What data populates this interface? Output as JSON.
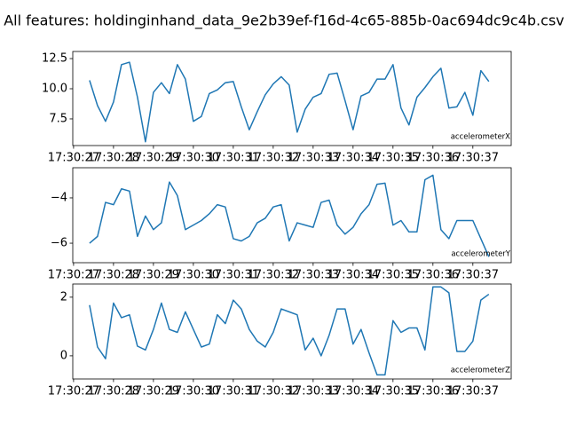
{
  "title": "All features: holdinginhand_data_9e2b39ef-f16d-4c65-885b-0ac694dc9c4b.csv",
  "chart_data": [
    {
      "type": "line",
      "x": [
        "17:30:27.4",
        "17:30:27.6",
        "17:30:27.8",
        "17:30:28.0",
        "17:30:28.2",
        "17:30:28.4",
        "17:30:28.6",
        "17:30:28.8",
        "17:30:29.0",
        "17:30:29.2",
        "17:30:29.4",
        "17:30:29.6",
        "17:30:29.8",
        "17:30:30.0",
        "17:30:30.2",
        "17:30:30.4",
        "17:30:30.6",
        "17:30:30.8",
        "17:30:31.0",
        "17:30:31.2",
        "17:30:31.4",
        "17:30:31.6",
        "17:30:31.8",
        "17:30:32.0",
        "17:30:32.2",
        "17:30:32.4",
        "17:30:32.6",
        "17:30:32.8",
        "17:30:33.0",
        "17:30:33.2",
        "17:30:33.4",
        "17:30:33.6",
        "17:30:33.8",
        "17:30:34.0",
        "17:30:34.2",
        "17:30:34.4",
        "17:30:34.6",
        "17:30:34.8",
        "17:30:35.0",
        "17:30:35.2",
        "17:30:35.4",
        "17:30:35.6",
        "17:30:35.8",
        "17:30:36.0",
        "17:30:36.2",
        "17:30:36.4",
        "17:30:36.6",
        "17:30:36.8",
        "17:30:37.0",
        "17:30:37.2",
        "17:30:37.4"
      ],
      "series": [
        {
          "name": "accelerometerX",
          "color": "#1f77b4",
          "values": [
            10.7,
            8.6,
            7.3,
            8.9,
            12.0,
            12.2,
            9.3,
            5.6,
            9.7,
            10.5,
            9.6,
            12.0,
            10.8,
            7.3,
            7.7,
            9.6,
            9.9,
            10.5,
            10.6,
            8.5,
            6.6,
            8.1,
            9.5,
            10.4,
            11.0,
            10.3,
            6.4,
            8.3,
            9.3,
            9.6,
            11.2,
            11.3,
            9.0,
            6.6,
            9.4,
            9.7,
            10.8,
            10.8,
            12.0,
            8.4,
            7.0,
            9.3,
            10.1,
            11.0,
            11.7,
            8.4,
            8.5,
            9.7,
            7.8,
            11.5,
            10.6
          ]
        }
      ],
      "xlim": [
        "17:30:26.98",
        "17:30:37.96"
      ],
      "xticks": [
        "17:30:27",
        "17:30:28",
        "17:30:29",
        "17:30:30",
        "17:30:31",
        "17:30:32",
        "17:30:33",
        "17:30:34",
        "17:30:35",
        "17:30:36",
        "17:30:37"
      ],
      "ylim": [
        5.29,
        13.09
      ],
      "yticks": [
        7.5,
        {
          "value": 10,
          "label": "10.0"
        },
        12.5
      ],
      "legend": "lower right"
    },
    {
      "type": "line",
      "x": [
        "17:30:27.4",
        "17:30:27.6",
        "17:30:27.8",
        "17:30:28.0",
        "17:30:28.2",
        "17:30:28.4",
        "17:30:28.6",
        "17:30:28.8",
        "17:30:29.0",
        "17:30:29.2",
        "17:30:29.4",
        "17:30:29.6",
        "17:30:29.8",
        "17:30:30.0",
        "17:30:30.2",
        "17:30:30.4",
        "17:30:30.6",
        "17:30:30.8",
        "17:30:31.0",
        "17:30:31.2",
        "17:30:31.4",
        "17:30:31.6",
        "17:30:31.8",
        "17:30:32.0",
        "17:30:32.2",
        "17:30:32.4",
        "17:30:32.6",
        "17:30:32.8",
        "17:30:33.0",
        "17:30:33.2",
        "17:30:33.4",
        "17:30:33.6",
        "17:30:33.8",
        "17:30:34.0",
        "17:30:34.2",
        "17:30:34.4",
        "17:30:34.6",
        "17:30:34.8",
        "17:30:35.0",
        "17:30:35.2",
        "17:30:35.4",
        "17:30:35.6",
        "17:30:35.8",
        "17:30:36.0",
        "17:30:36.2",
        "17:30:36.4",
        "17:30:36.6",
        "17:30:36.8",
        "17:30:37.0",
        "17:30:37.2",
        "17:30:37.4"
      ],
      "series": [
        {
          "name": "accelerometerY",
          "color": "#1f77b4",
          "values": [
            -6.0,
            -5.7,
            -4.2,
            -4.3,
            -3.6,
            -3.7,
            -5.7,
            -4.8,
            -5.4,
            -5.1,
            -3.3,
            -3.9,
            -5.4,
            -5.2,
            -5.0,
            -4.7,
            -4.3,
            -4.4,
            -5.8,
            -5.9,
            -5.7,
            -5.1,
            -4.9,
            -4.4,
            -4.3,
            -5.9,
            -5.1,
            -5.2,
            -5.3,
            -4.2,
            -4.1,
            -5.2,
            -5.6,
            -5.3,
            -4.7,
            -4.3,
            -3.4,
            -3.35,
            -5.2,
            -5.0,
            -5.5,
            -5.5,
            -3.2,
            -3.0,
            -5.4,
            -5.8,
            -5.0,
            -5.0,
            -5.0,
            -5.8,
            -6.6
          ]
        }
      ],
      "xlim": [
        "17:30:26.98",
        "17:30:37.96"
      ],
      "xticks": [
        "17:30:27",
        "17:30:28",
        "17:30:29",
        "17:30:30",
        "17:30:31",
        "17:30:32",
        "17:30:33",
        "17:30:34",
        "17:30:35",
        "17:30:36",
        "17:30:37"
      ],
      "ylim": [
        -6.86,
        -2.67
      ],
      "yticks": [
        {
          "value": -6,
          "label": "−6"
        },
        {
          "value": -4,
          "label": "−4"
        }
      ],
      "legend": "lower right"
    },
    {
      "type": "line",
      "x": [
        "17:30:27.4",
        "17:30:27.6",
        "17:30:27.8",
        "17:30:28.0",
        "17:30:28.2",
        "17:30:28.4",
        "17:30:28.6",
        "17:30:28.8",
        "17:30:29.0",
        "17:30:29.2",
        "17:30:29.4",
        "17:30:29.6",
        "17:30:29.8",
        "17:30:30.0",
        "17:30:30.2",
        "17:30:30.4",
        "17:30:30.6",
        "17:30:30.8",
        "17:30:31.0",
        "17:30:31.2",
        "17:30:31.4",
        "17:30:31.6",
        "17:30:31.8",
        "17:30:32.0",
        "17:30:32.2",
        "17:30:32.4",
        "17:30:32.6",
        "17:30:32.8",
        "17:30:33.0",
        "17:30:33.2",
        "17:30:33.4",
        "17:30:33.6",
        "17:30:33.8",
        "17:30:34.0",
        "17:30:34.2",
        "17:30:34.4",
        "17:30:34.6",
        "17:30:34.8",
        "17:30:35.0",
        "17:30:35.2",
        "17:30:35.4",
        "17:30:35.6",
        "17:30:35.8",
        "17:30:36.0",
        "17:30:36.2",
        "17:30:36.4",
        "17:30:36.6",
        "17:30:36.8",
        "17:30:37.0",
        "17:30:37.2",
        "17:30:37.4"
      ],
      "series": [
        {
          "name": "accelerometerZ",
          "color": "#1f77b4",
          "values": [
            1.73,
            0.3,
            -0.1,
            1.8,
            1.3,
            1.4,
            0.33,
            0.2,
            0.9,
            1.8,
            0.9,
            0.8,
            1.5,
            0.9,
            0.3,
            0.4,
            1.4,
            1.1,
            1.9,
            1.6,
            0.9,
            0.5,
            0.3,
            0.8,
            1.6,
            1.5,
            1.4,
            0.2,
            0.6,
            0.0,
            0.7,
            1.6,
            1.6,
            0.4,
            0.9,
            0.1,
            -0.65,
            -0.65,
            1.2,
            0.8,
            0.95,
            0.95,
            0.2,
            2.35,
            2.35,
            2.15,
            0.15,
            0.15,
            0.5,
            1.9,
            2.1
          ]
        }
      ],
      "xlim": [
        "17:30:26.98",
        "17:30:37.96"
      ],
      "xticks": [
        "17:30:27",
        "17:30:28",
        "17:30:29",
        "17:30:30",
        "17:30:31",
        "17:30:32",
        "17:30:33",
        "17:30:34",
        "17:30:35",
        "17:30:36",
        "17:30:37"
      ],
      "ylim": [
        -0.79,
        2.45
      ],
      "yticks": [
        0,
        2
      ],
      "legend": "lower right"
    }
  ]
}
